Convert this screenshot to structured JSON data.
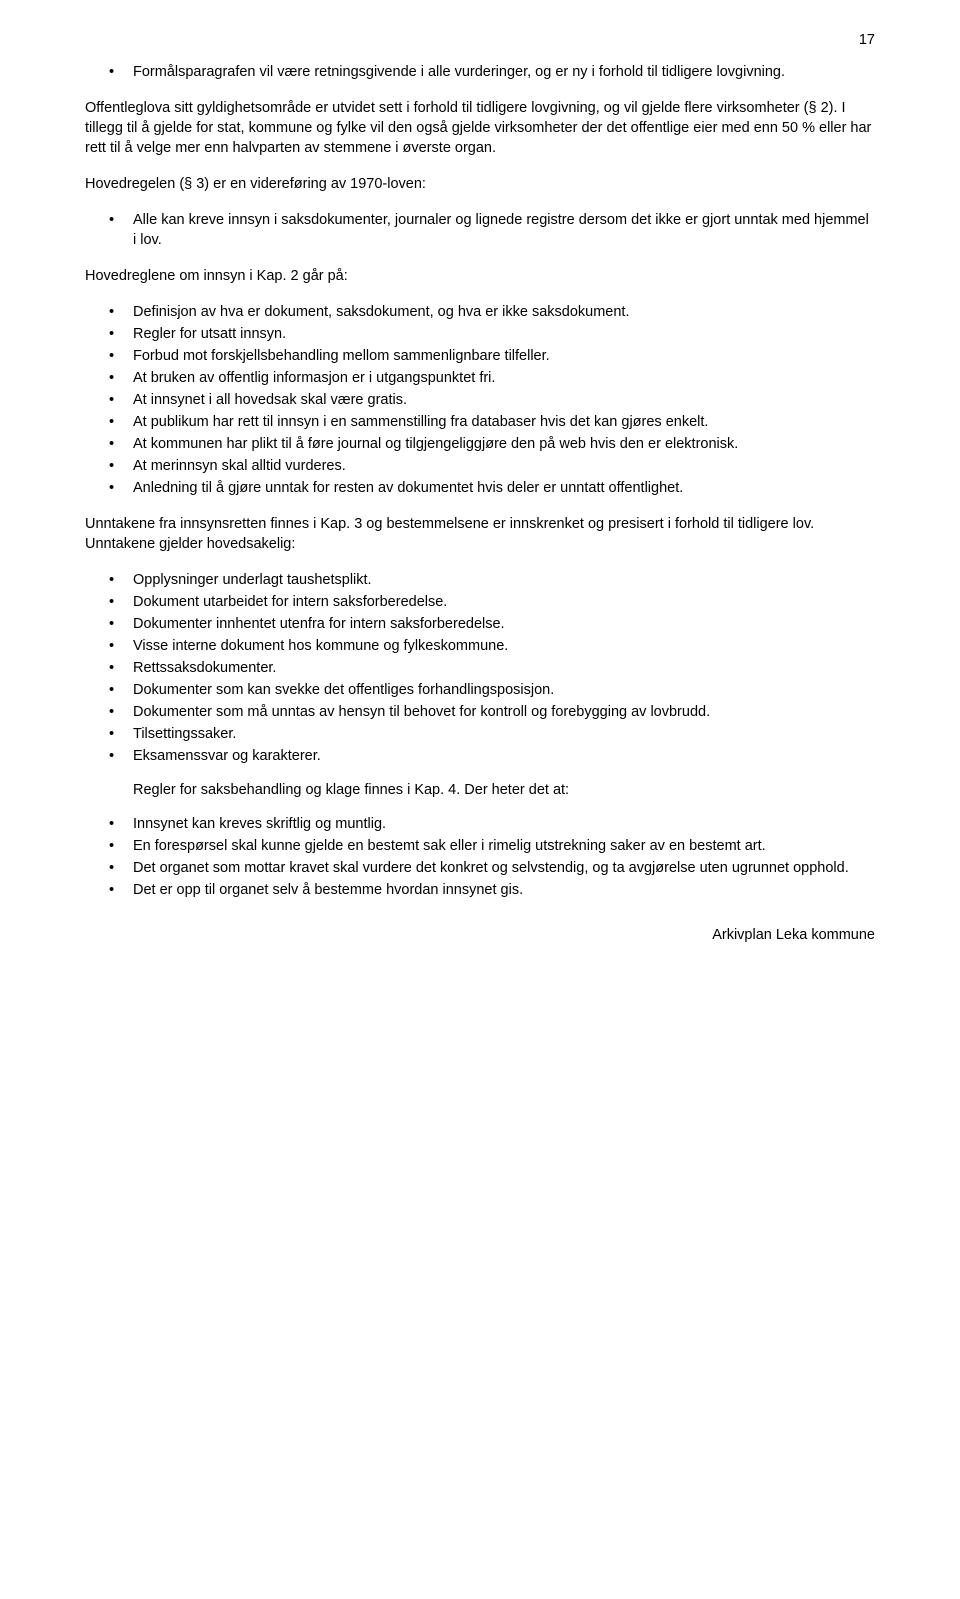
{
  "page_number": "17",
  "top_bullets": [
    "Formålsparagrafen vil være retningsgivende i alle vurderinger, og er ny i forhold til tidligere lovgivning."
  ],
  "para1": "Offentleglova sitt gyldighetsområde er utvidet sett i forhold til tidligere lovgivning, og vil gjelde flere virksomheter (§ 2). I tillegg til å gjelde for stat, kommune og fylke vil den også gjelde virksomheter der det offentlige eier med enn 50 % eller har rett til å velge mer enn halvparten av stemmene i øverste organ.",
  "para2": "Hovedregelen (§ 3) er en videreføring av 1970-loven:",
  "mid_bullets": [
    "Alle kan kreve innsyn i saksdokumenter, journaler og lignede registre dersom det ikke er gjort unntak med hjemmel i lov."
  ],
  "para3": "Hovedreglene om innsyn i Kap. 2 går på:",
  "kap2_bullets": [
    "Definisjon av hva er dokument, saksdokument, og hva er ikke saksdokument.",
    "Regler for utsatt innsyn.",
    "Forbud mot forskjellsbehandling mellom sammenlignbare tilfeller.",
    "At bruken av offentlig informasjon er i utgangspunktet fri.",
    "At innsynet i all hovedsak skal være gratis.",
    "At publikum har rett til innsyn i en sammenstilling fra databaser hvis det kan gjøres enkelt.",
    "At kommunen har plikt til å føre journal og tilgjengeliggjøre den på web hvis den er elektronisk.",
    "At merinnsyn skal alltid vurderes.",
    "Anledning til å gjøre unntak for resten av dokumentet hvis deler er unntatt offentlighet."
  ],
  "para4": "Unntakene fra innsynsretten finnes i Kap. 3 og bestemmelsene er innskrenket og presisert i forhold til tidligere lov. Unntakene gjelder hovedsakelig:",
  "kap3_bullets": [
    "Opplysninger underlagt taushetsplikt.",
    "Dokument utarbeidet for intern saksforberedelse.",
    "Dokumenter innhentet utenfra for intern saksforberedelse.",
    "Visse interne dokument hos kommune og fylkeskommune.",
    "Rettssaksdokumenter.",
    "Dokumenter som kan svekke det offentliges forhandlingsposisjon.",
    "Dokumenter som må unntas av hensyn til behovet for kontroll og forebygging av lovbrudd.",
    "Tilsettingssaker.",
    "Eksamenssvar og karakterer."
  ],
  "kap4_intro": "Regler for saksbehandling og klage finnes i Kap. 4. Der heter det at:",
  "kap4_bullets": [
    "Innsynet kan kreves skriftlig og muntlig.",
    "En forespørsel skal kunne gjelde en bestemt sak eller i rimelig utstrekning saker av en bestemt art.",
    "Det organet som mottar kravet skal vurdere det konkret og selvstendig, og ta avgjørelse uten ugrunnet opphold.",
    "Det er opp til organet selv å bestemme hvordan innsynet gis."
  ],
  "footer": "Arkivplan Leka kommune"
}
